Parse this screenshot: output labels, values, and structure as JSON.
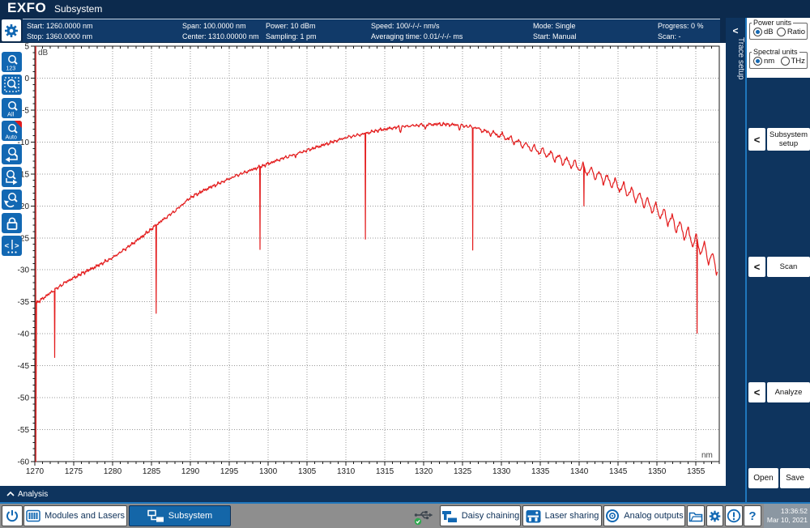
{
  "title_bar": {
    "logo": "EXFO",
    "app_title": "Subsystem"
  },
  "params_bar": {
    "columns": [
      {
        "row1": "Start: 1260.0000 nm",
        "row2": "Stop: 1360.0000 nm"
      },
      {
        "row1": "Span: 100.0000 nm",
        "row2": "Center: 1310.00000 nm"
      },
      {
        "row1": "Power: 10 dBm",
        "row2": "Sampling: 1 pm"
      },
      {
        "row1": "Speed: 100/-/-/- nm/s",
        "row2": "Averaging time: 0.01/-/-/- ms"
      },
      {
        "row1": "Mode: Single",
        "row2": "Start: Manual"
      },
      {
        "row1": "Progress: 0 %",
        "row2": "Scan: -"
      }
    ]
  },
  "left_toolbar": {
    "icons": [
      {
        "name": "zoom-1-2-3",
        "label": "123"
      },
      {
        "name": "zoom-selection",
        "label": ""
      },
      {
        "name": "zoom-all",
        "label": "All"
      },
      {
        "name": "zoom-auto",
        "label": "Auto",
        "badge": true
      },
      {
        "name": "zoom-horizontal",
        "label": ""
      },
      {
        "name": "zoom-vertical",
        "label": ""
      },
      {
        "name": "zoom-undo",
        "label": ""
      },
      {
        "name": "lock",
        "label": ""
      },
      {
        "name": "markers",
        "label": ""
      }
    ]
  },
  "trace_setup_tab": {
    "chevron": "<",
    "label": "Trace setup"
  },
  "sidebar": {
    "power_units": {
      "legend": "Power units",
      "options": [
        {
          "label": "dB",
          "selected": true
        },
        {
          "label": "Ratio",
          "selected": false
        }
      ]
    },
    "spectral_units": {
      "legend": "Spectral units",
      "options": [
        {
          "label": "nm",
          "selected": true
        },
        {
          "label": "THz",
          "selected": false
        }
      ]
    },
    "chevron": "<",
    "buttons": [
      {
        "label": "Subsystem setup"
      },
      {
        "label": "Scan"
      },
      {
        "label": "Analyze"
      }
    ],
    "open_label": "Open",
    "save_label": "Save"
  },
  "analysis_bar": {
    "label": "Analysis"
  },
  "taskbar": {
    "tabs": [
      {
        "label": "Modules and Lasers",
        "selected": false
      },
      {
        "label": "Subsystem",
        "selected": true
      }
    ],
    "tray_buttons": [
      {
        "label": "Daisy chaining"
      },
      {
        "label": "Laser sharing"
      },
      {
        "label": "Analog outputs"
      }
    ],
    "clock": {
      "time": "13:36:52",
      "date": "Mar 10, 2021"
    }
  },
  "chart_data": {
    "type": "line",
    "title": "",
    "xlabel": "nm",
    "ylabel": "dB",
    "xlim": [
      1270,
      1358
    ],
    "ylim": [
      -60,
      5
    ],
    "x_tick_step": 5,
    "y_tick_step": 5,
    "x_label_max": 1355,
    "grid": "dotted",
    "trace_color": "#e31b1c",
    "start_spike_nm": 1270.12,
    "trace_start": 1270.22,
    "trace_end": 1357.8,
    "envelope": [
      [
        1270,
        -35.4
      ],
      [
        1272,
        -33.6
      ],
      [
        1274,
        -31.9
      ],
      [
        1276,
        -30.6
      ],
      [
        1278,
        -29.4
      ],
      [
        1280,
        -28.1
      ],
      [
        1282,
        -26.4
      ],
      [
        1284,
        -24.6
      ],
      [
        1286,
        -22.6
      ],
      [
        1288,
        -20.8
      ],
      [
        1290,
        -18.7
      ],
      [
        1292,
        -17.4
      ],
      [
        1294,
        -16.3
      ],
      [
        1296,
        -15.2
      ],
      [
        1298,
        -14.3
      ],
      [
        1300,
        -13.4
      ],
      [
        1302,
        -12.5
      ],
      [
        1304,
        -11.7
      ],
      [
        1306,
        -10.9
      ],
      [
        1308,
        -10.1
      ],
      [
        1310,
        -9.3
      ],
      [
        1312,
        -8.8
      ],
      [
        1314,
        -8.2
      ],
      [
        1316,
        -7.8
      ],
      [
        1318,
        -7.5
      ],
      [
        1320,
        -7.3
      ],
      [
        1322,
        -7.2
      ],
      [
        1324,
        -7.3
      ],
      [
        1326,
        -7.6
      ],
      [
        1327,
        -7.9
      ],
      [
        1328,
        -8.4
      ],
      [
        1330,
        -9.0
      ],
      [
        1332,
        -10.0
      ],
      [
        1334,
        -11.0
      ],
      [
        1336,
        -11.9
      ],
      [
        1338,
        -12.9
      ],
      [
        1340,
        -13.9
      ],
      [
        1342,
        -15.0
      ],
      [
        1344,
        -16.2
      ],
      [
        1346,
        -17.5
      ],
      [
        1348,
        -19.0
      ],
      [
        1350,
        -20.7
      ],
      [
        1352,
        -22.5
      ],
      [
        1354,
        -24.6
      ],
      [
        1356,
        -26.9
      ],
      [
        1357.8,
        -29.5
      ]
    ],
    "notches": [
      {
        "nm": 1272.55,
        "bottom": -43.7
      },
      {
        "nm": 1285.6,
        "bottom": -36.8
      },
      {
        "nm": 1298.95,
        "bottom": -26.8
      },
      {
        "nm": 1312.5,
        "bottom": -25.2
      },
      {
        "nm": 1326.3,
        "bottom": -26.9
      },
      {
        "nm": 1340.6,
        "bottom": -20.0
      },
      {
        "nm": 1355.15,
        "bottom": -39.9
      }
    ],
    "micro_notches": [
      [
        1303.5,
        0.5
      ],
      [
        1317.0,
        0.8
      ],
      [
        1320.2,
        0.9
      ],
      [
        1324.6,
        0.8
      ]
    ],
    "ripple": {
      "noise": 0.1,
      "components": [
        {
          "period": 0.58,
          "phase": 0,
          "shape": "triangle",
          "amps": [
            [
              1270,
              0.16
            ],
            [
              1285,
              0.14
            ],
            [
              1310,
              0.14
            ],
            [
              1325,
              0.16
            ],
            [
              1332,
              0.2
            ],
            [
              1340,
              0.18
            ],
            [
              1350,
              0.18
            ],
            [
              1358,
              0.2
            ]
          ]
        },
        {
          "period": 1.04,
          "phase": 2,
          "shape": "triangle",
          "amps": [
            [
              1270,
              0.05
            ],
            [
              1326,
              0.08
            ],
            [
              1329,
              0.35
            ],
            [
              1333,
              0.55
            ],
            [
              1337,
              0.7
            ],
            [
              1341,
              0.85
            ],
            [
              1345,
              0.95
            ],
            [
              1349,
              1.05
            ],
            [
              1353,
              1.25
            ],
            [
              1356,
              1.45
            ],
            [
              1358,
              1.4
            ]
          ]
        },
        {
          "period": 0.23,
          "phase": 1.3,
          "shape": "sine",
          "amps": [
            [
              1270,
              0.14
            ],
            [
              1290,
              0.12
            ],
            [
              1310,
              0.1
            ],
            [
              1330,
              0.1
            ],
            [
              1358,
              0.12
            ]
          ]
        }
      ]
    }
  }
}
